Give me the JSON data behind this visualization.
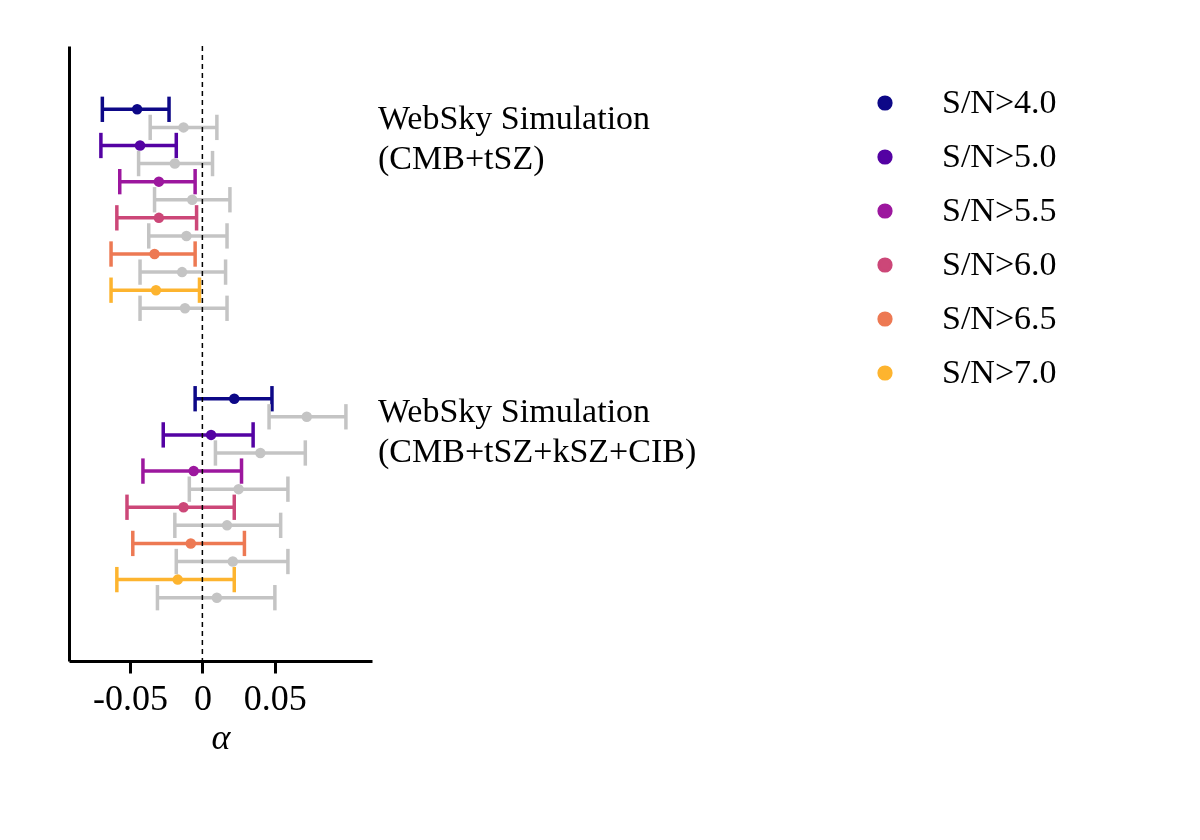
{
  "chart_data": {
    "type": "scatter",
    "orientation": "horizontal",
    "xlabel": "α",
    "xlim": [
      -0.092,
      0.117
    ],
    "xticks": [
      -0.05,
      0,
      0.05
    ],
    "categories": [
      null,
      null,
      null,
      null,
      null,
      null,
      null,
      null,
      null,
      null,
      null,
      null,
      null,
      null,
      null,
      null,
      null,
      null,
      null,
      null,
      null,
      null,
      null,
      null,
      null,
      null,
      null,
      null,
      null,
      null,
      null,
      null,
      null,
      null
    ],
    "series": [
      {
        "name": "S/N>4.0",
        "color": "#0d0887",
        "values": [
          null,
          null,
          null,
          -0.045,
          null,
          null,
          null,
          null,
          null,
          null,
          null,
          null,
          null,
          null,
          null,
          null,
          null,
          null,
          null,
          0.022,
          null,
          null,
          null,
          null,
          null,
          null,
          null,
          null,
          null,
          null,
          null,
          null,
          null,
          null
        ],
        "errors": [
          null,
          null,
          null,
          [
            -0.069,
            -0.023
          ],
          null,
          null,
          null,
          null,
          null,
          null,
          null,
          null,
          null,
          null,
          null,
          null,
          null,
          null,
          null,
          [
            -0.005,
            0.048
          ],
          null,
          null,
          null,
          null,
          null,
          null,
          null,
          null,
          null,
          null,
          null,
          null,
          null,
          null
        ]
      },
      {
        "name": "S/N>5.0",
        "color": "#5402a3",
        "values": [
          null,
          null,
          null,
          null,
          null,
          -0.043,
          null,
          null,
          null,
          null,
          null,
          null,
          null,
          null,
          null,
          null,
          null,
          null,
          null,
          null,
          null,
          0.006,
          null,
          null,
          null,
          null,
          null,
          null,
          null,
          null,
          null,
          null,
          null,
          null
        ],
        "errors": [
          null,
          null,
          null,
          null,
          null,
          [
            -0.07,
            -0.018
          ],
          null,
          null,
          null,
          null,
          null,
          null,
          null,
          null,
          null,
          null,
          null,
          null,
          null,
          null,
          null,
          [
            -0.027,
            0.035
          ],
          null,
          null,
          null,
          null,
          null,
          null,
          null,
          null,
          null,
          null,
          null,
          null
        ]
      },
      {
        "name": "S/N>5.5",
        "color": "#9c179e",
        "values": [
          null,
          null,
          null,
          null,
          null,
          null,
          null,
          -0.03,
          null,
          null,
          null,
          null,
          null,
          null,
          null,
          null,
          null,
          null,
          null,
          null,
          null,
          null,
          null,
          -0.006,
          null,
          null,
          null,
          null,
          null,
          null,
          null,
          null,
          null,
          null
        ],
        "errors": [
          null,
          null,
          null,
          null,
          null,
          null,
          null,
          [
            -0.057,
            -0.005
          ],
          null,
          null,
          null,
          null,
          null,
          null,
          null,
          null,
          null,
          null,
          null,
          null,
          null,
          null,
          null,
          [
            -0.041,
            0.027
          ],
          null,
          null,
          null,
          null,
          null,
          null,
          null,
          null,
          null,
          null
        ]
      },
      {
        "name": "S/N>6.0",
        "color": "#cc4778",
        "values": [
          null,
          null,
          null,
          null,
          null,
          null,
          null,
          null,
          null,
          -0.03,
          null,
          null,
          null,
          null,
          null,
          null,
          null,
          null,
          null,
          null,
          null,
          null,
          null,
          null,
          null,
          -0.013,
          null,
          null,
          null,
          null,
          null,
          null,
          null,
          null
        ],
        "errors": [
          null,
          null,
          null,
          null,
          null,
          null,
          null,
          null,
          null,
          [
            -0.059,
            -0.004
          ],
          null,
          null,
          null,
          null,
          null,
          null,
          null,
          null,
          null,
          null,
          null,
          null,
          null,
          null,
          null,
          [
            -0.052,
            0.022
          ],
          null,
          null,
          null,
          null,
          null,
          null,
          null,
          null
        ]
      },
      {
        "name": "S/N>6.5",
        "color": "#ed7953",
        "values": [
          null,
          null,
          null,
          null,
          null,
          null,
          null,
          null,
          null,
          null,
          null,
          -0.033,
          null,
          null,
          null,
          null,
          null,
          null,
          null,
          null,
          null,
          null,
          null,
          null,
          null,
          null,
          null,
          -0.008,
          null,
          null,
          null,
          null,
          null,
          null
        ],
        "errors": [
          null,
          null,
          null,
          null,
          null,
          null,
          null,
          null,
          null,
          null,
          null,
          [
            -0.063,
            -0.005
          ],
          null,
          null,
          null,
          null,
          null,
          null,
          null,
          null,
          null,
          null,
          null,
          null,
          null,
          null,
          null,
          [
            -0.048,
            0.029
          ],
          null,
          null,
          null,
          null,
          null,
          null
        ]
      },
      {
        "name": "S/N>7.0",
        "color": "#fdb42f",
        "values": [
          null,
          null,
          null,
          null,
          null,
          null,
          null,
          null,
          null,
          null,
          null,
          null,
          null,
          -0.032,
          null,
          null,
          null,
          null,
          null,
          null,
          null,
          null,
          null,
          null,
          null,
          null,
          null,
          null,
          null,
          -0.017,
          null,
          null,
          null,
          null
        ],
        "errors": [
          null,
          null,
          null,
          null,
          null,
          null,
          null,
          null,
          null,
          null,
          null,
          null,
          null,
          [
            -0.063,
            -0.002
          ],
          null,
          null,
          null,
          null,
          null,
          null,
          null,
          null,
          null,
          null,
          null,
          null,
          null,
          null,
          null,
          [
            -0.059,
            0.022
          ],
          null,
          null,
          null,
          null
        ]
      },
      {
        "color": "#c4c4c4",
        "values": [
          null,
          null,
          null,
          null,
          -0.013,
          null,
          -0.019,
          null,
          -0.007,
          null,
          -0.011,
          null,
          -0.014,
          null,
          -0.012,
          null,
          null,
          null,
          null,
          null,
          0.072,
          null,
          0.04,
          null,
          0.025,
          null,
          0.017,
          null,
          0.021,
          null,
          0.01,
          null,
          null,
          null
        ],
        "errors": [
          null,
          null,
          null,
          null,
          [
            -0.036,
            0.01
          ],
          null,
          [
            -0.044,
            0.007
          ],
          null,
          [
            -0.033,
            0.019
          ],
          null,
          [
            -0.037,
            0.017
          ],
          null,
          [
            -0.043,
            0.016
          ],
          null,
          [
            -0.043,
            0.017
          ],
          null,
          null,
          null,
          null,
          null,
          [
            0.046,
            0.099
          ],
          null,
          [
            0.009,
            0.071
          ],
          null,
          [
            -0.009,
            0.059
          ],
          null,
          [
            -0.019,
            0.054
          ],
          null,
          [
            -0.018,
            0.059
          ],
          null,
          [
            -0.031,
            0.05
          ],
          null,
          null,
          null
        ]
      }
    ],
    "ref_lines": [
      {
        "axis": "x",
        "value": 0,
        "color": "#000000",
        "line_style": "dashed"
      }
    ],
    "annotations": [
      "WebSky Simulation\n(CMB+tSZ)",
      "WebSky Simulation\n(CMB+tSZ+kSZ+CIB)"
    ],
    "legend": "top right",
    "marker": "circle",
    "grid": false,
    "tick_labels": "x"
  }
}
